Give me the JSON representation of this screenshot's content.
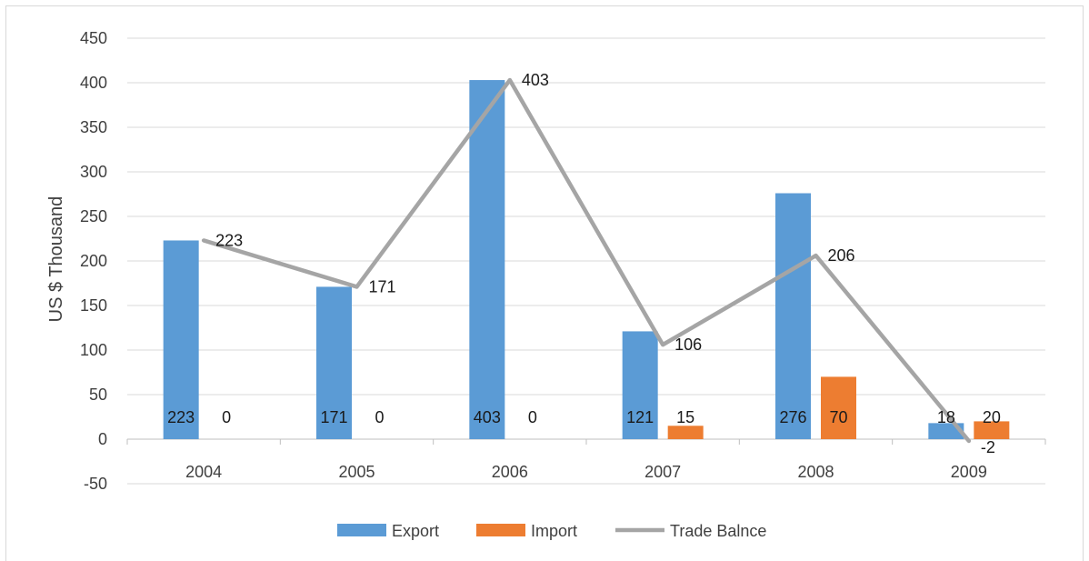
{
  "chart_data": {
    "type": "bar",
    "title": "",
    "xlabel": "",
    "ylabel": "US $ Thousand",
    "categories": [
      "2004",
      "2005",
      "2006",
      "2007",
      "2008",
      "2009"
    ],
    "ylim": [
      -50,
      450
    ],
    "yticks": [
      -50,
      0,
      50,
      100,
      150,
      200,
      250,
      300,
      350,
      400,
      450
    ],
    "grid": true,
    "legend_position": "bottom",
    "series": [
      {
        "name": "Export",
        "type": "bar",
        "color": "#5b9bd5",
        "values": [
          223,
          171,
          403,
          121,
          276,
          18
        ],
        "labels": [
          "223",
          "171",
          "403",
          "121",
          "276",
          "18"
        ]
      },
      {
        "name": "Import",
        "type": "bar",
        "color": "#ed7d31",
        "values": [
          0,
          0,
          0,
          15,
          70,
          20
        ],
        "labels": [
          "0",
          "0",
          "0",
          "15",
          "70",
          "20"
        ]
      },
      {
        "name": "Trade Balnce",
        "type": "line",
        "color": "#a5a5a5",
        "values": [
          223,
          171,
          403,
          106,
          206,
          -2
        ],
        "labels": [
          "223",
          "171",
          "403",
          "106",
          "206",
          "-2"
        ]
      }
    ]
  }
}
